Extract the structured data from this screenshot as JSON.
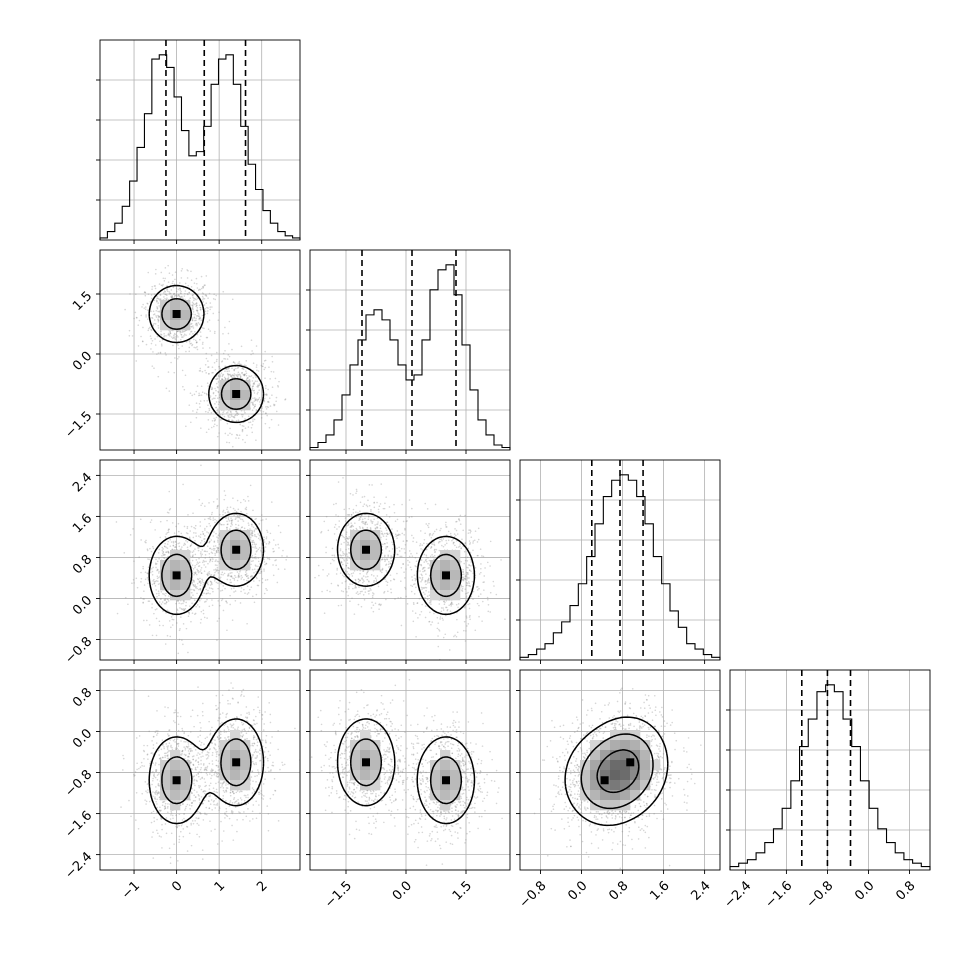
{
  "chart_data": {
    "type": "corner",
    "variables": [
      {
        "range": [
          -1.8,
          2.9
        ],
        "ticks": [
          -1,
          0,
          1,
          2
        ],
        "tick_labels": [
          "−1",
          "0",
          "1",
          "2"
        ],
        "quantiles": [
          -0.25,
          0.65,
          1.62
        ],
        "hist_edges": [
          -1.8,
          2.9
        ],
        "hist_counts": [
          0.5,
          2,
          4,
          8,
          14,
          22,
          30,
          43,
          44,
          41,
          34,
          26,
          20,
          21,
          27,
          37,
          43,
          44,
          37,
          27,
          18,
          12,
          7,
          4,
          2,
          1,
          0.5
        ]
      },
      {
        "range": [
          -2.4,
          2.6
        ],
        "ticks": [
          -1.5,
          0.0,
          1.5
        ],
        "tick_labels": [
          "−1.5",
          "0.0",
          "1.5"
        ],
        "quantiles": [
          -1.1,
          0.15,
          1.25
        ],
        "hist_edges": [
          -2.4,
          2.6
        ],
        "hist_counts": [
          0.5,
          1.5,
          3,
          6,
          11,
          17,
          22,
          27,
          28,
          26,
          22,
          17,
          14,
          15,
          22,
          32,
          36,
          37,
          31,
          21,
          12,
          6,
          3,
          1,
          0.5
        ]
      },
      {
        "range": [
          -1.2,
          2.7
        ],
        "ticks": [
          -0.8,
          0.0,
          0.8,
          1.6,
          2.4
        ],
        "tick_labels": [
          "−0.8",
          "0.0",
          "0.8",
          "1.6",
          "2.4"
        ],
        "quantiles": [
          0.2,
          0.75,
          1.2
        ],
        "hist_edges": [
          -1.2,
          2.7
        ],
        "hist_counts": [
          0.5,
          1,
          2,
          3,
          5,
          7,
          10,
          14,
          19,
          25,
          30,
          33,
          34,
          33,
          30,
          25,
          19,
          14,
          9,
          6,
          3,
          2,
          1,
          0.5
        ]
      },
      {
        "range": [
          -2.7,
          1.2
        ],
        "ticks": [
          -2.4,
          -1.6,
          -0.8,
          0.0,
          0.8
        ],
        "tick_labels": [
          "−2.4",
          "−1.6",
          "−0.8",
          "0.0",
          "0.8"
        ],
        "quantiles": [
          -1.3,
          -0.8,
          -0.35
        ],
        "hist_edges": [
          -2.7,
          1.2
        ],
        "hist_counts": [
          0.5,
          1,
          1.5,
          2.5,
          4,
          6,
          9,
          13,
          18,
          22,
          26,
          27,
          26,
          22,
          18,
          13,
          9,
          6,
          4,
          2.5,
          1.5,
          1,
          0.5
        ]
      }
    ],
    "modes": [
      {
        "mean": [
          0.0,
          1.0,
          0.45,
          -0.95
        ],
        "sd": [
          0.38,
          0.42,
          0.45,
          0.5
        ]
      },
      {
        "mean": [
          1.4,
          -1.0,
          0.95,
          -0.6
        ],
        "sd": [
          0.38,
          0.42,
          0.42,
          0.5
        ]
      }
    ],
    "grid": true
  }
}
